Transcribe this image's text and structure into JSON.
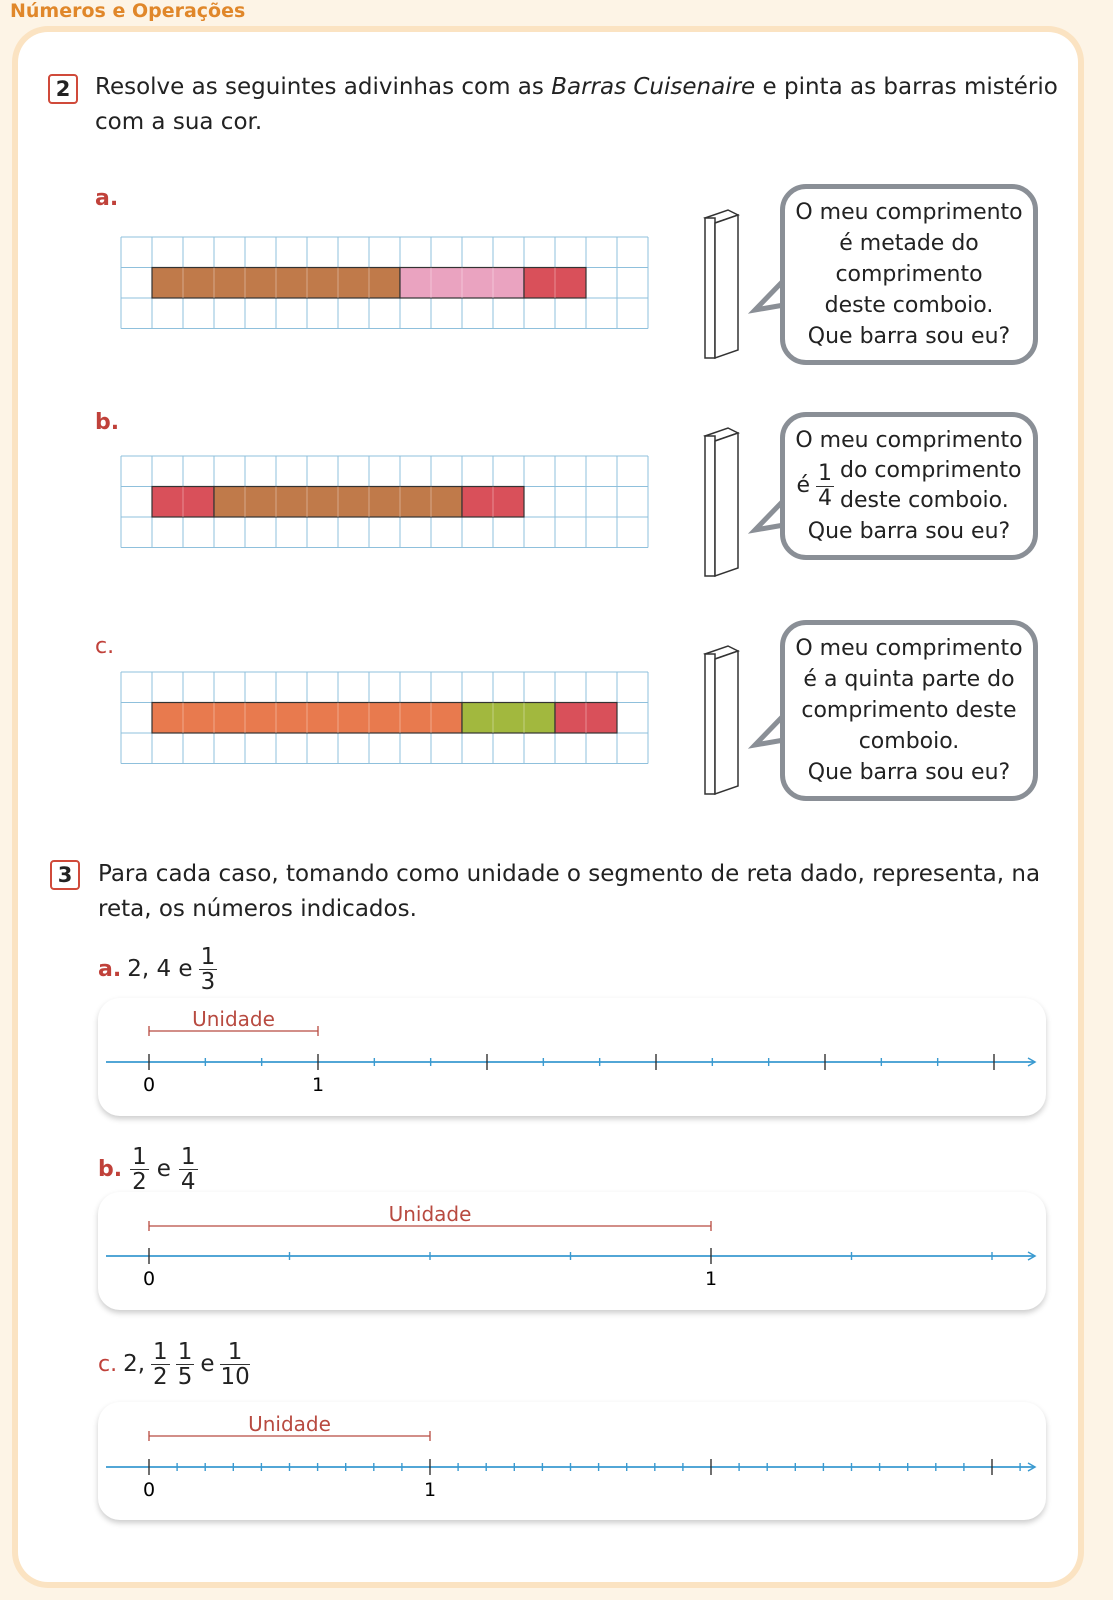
{
  "header": "Números e Operações",
  "ex2": {
    "number": "2",
    "text_pre": "Resolve as seguintes adivinhas com as ",
    "text_em": "Barras Cuisenaire",
    "text_post": " e pinta as barras mistério com a sua cor.",
    "items": [
      {
        "label": "a.",
        "bars": [
          {
            "color": "#c07a4a",
            "length": 8
          },
          {
            "color": "#eaa3c0",
            "length": 4
          },
          {
            "color": "#d9505a",
            "length": 2
          }
        ],
        "bubble": [
          "O meu comprimento",
          "é metade do",
          "comprimento",
          "deste comboio.",
          "Que barra sou eu?"
        ]
      },
      {
        "label": "b.",
        "bars": [
          {
            "color": "#d9505a",
            "length": 2
          },
          {
            "color": "#c07a4a",
            "length": 8
          },
          {
            "color": "#d9505a",
            "length": 2
          }
        ],
        "bubble_line1": "O meu comprimento",
        "bubble_pre": "é",
        "frac_num": "1",
        "frac_den": "4",
        "bubble_post1": "do comprimento",
        "bubble_post2": "deste comboio.",
        "bubble_line4": "Que barra sou eu?"
      },
      {
        "label": "c.",
        "bars": [
          {
            "color": "#e87a4e",
            "length": 10
          },
          {
            "color": "#a2b83e",
            "length": 3
          },
          {
            "color": "#d9505a",
            "length": 2
          }
        ],
        "bubble": [
          "O meu comprimento",
          "é a quinta parte do",
          "comprimento deste",
          "comboio.",
          "Que barra sou eu?"
        ]
      }
    ]
  },
  "ex3": {
    "number": "3",
    "text": "Para cada caso, tomando como unidade o segmento de reta dado, representa, na reta, os números indicados.",
    "unit_label": "Unidade",
    "items": [
      {
        "label": "a.",
        "nums": "2, 4 e",
        "fn": "1",
        "fd": "3",
        "zero": "0",
        "one": "1",
        "subdiv": 3
      },
      {
        "label": "b.",
        "f1n": "1",
        "f1d": "2",
        "e": "e",
        "f2n": "1",
        "f2d": "4",
        "zero": "0",
        "one": "1",
        "subdiv": 4
      },
      {
        "label": "c.",
        "pre": "2,",
        "f1n": "1",
        "f1d": "2",
        "f2n": "1",
        "f2d": "5",
        "e": "e",
        "f3n": "1",
        "f3d": "10",
        "zero": "0",
        "one": "1",
        "subdiv": 10
      }
    ]
  }
}
